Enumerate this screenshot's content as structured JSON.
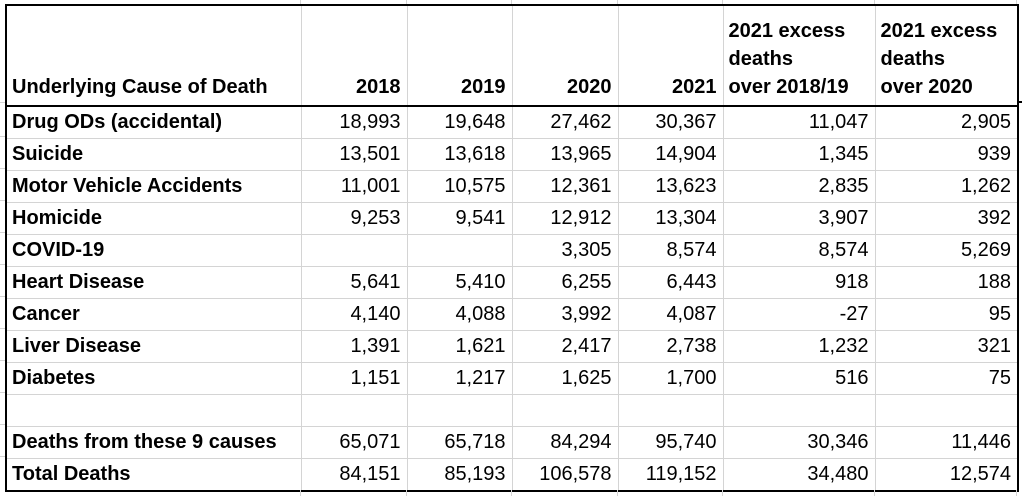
{
  "sheet": {
    "header": {
      "cause": "Underlying Cause of Death",
      "y2018": "2018",
      "y2019": "2019",
      "y2020": "2020",
      "y2021": "2021",
      "excess_1819_lines": [
        "2021 excess",
        "deaths",
        "over 2018/19"
      ],
      "excess_2020_lines": [
        "2021 excess",
        "deaths",
        "over 2020"
      ]
    },
    "rows": [
      {
        "label": "Drug ODs (accidental)",
        "values": [
          "18,993",
          "19,648",
          "27,462",
          "30,367",
          "11,047",
          "2,905"
        ]
      },
      {
        "label": "Suicide",
        "values": [
          "13,501",
          "13,618",
          "13,965",
          "14,904",
          "1,345",
          "939"
        ]
      },
      {
        "label": "Motor Vehicle Accidents",
        "values": [
          "11,001",
          "10,575",
          "12,361",
          "13,623",
          "2,835",
          "1,262"
        ]
      },
      {
        "label": "Homicide",
        "values": [
          "9,253",
          "9,541",
          "12,912",
          "13,304",
          "3,907",
          "392"
        ]
      },
      {
        "label": "COVID-19",
        "values": [
          "",
          "",
          "3,305",
          "8,574",
          "8,574",
          "5,269"
        ]
      },
      {
        "label": "Heart Disease",
        "values": [
          "5,641",
          "5,410",
          "6,255",
          "6,443",
          "918",
          "188"
        ]
      },
      {
        "label": "Cancer",
        "values": [
          "4,140",
          "4,088",
          "3,992",
          "4,087",
          "-27",
          "95"
        ]
      },
      {
        "label": "Liver Disease",
        "values": [
          "1,391",
          "1,621",
          "2,417",
          "2,738",
          "1,232",
          "321"
        ]
      },
      {
        "label": "Diabetes",
        "values": [
          "1,151",
          "1,217",
          "1,625",
          "1,700",
          "516",
          "75"
        ]
      },
      {
        "label": "",
        "values": [
          "",
          "",
          "",
          "",
          "",
          ""
        ]
      },
      {
        "label": "Deaths from these 9 causes",
        "values": [
          "65,071",
          "65,718",
          "84,294",
          "95,740",
          "30,346",
          "11,446"
        ]
      },
      {
        "label": "Total Deaths",
        "values": [
          "84,151",
          "85,193",
          "106,578",
          "119,152",
          "34,480",
          "12,574"
        ]
      }
    ],
    "colors": {
      "gridline": "#d4d4d4",
      "border": "#000000",
      "text": "#000000",
      "background": "#ffffff"
    }
  }
}
